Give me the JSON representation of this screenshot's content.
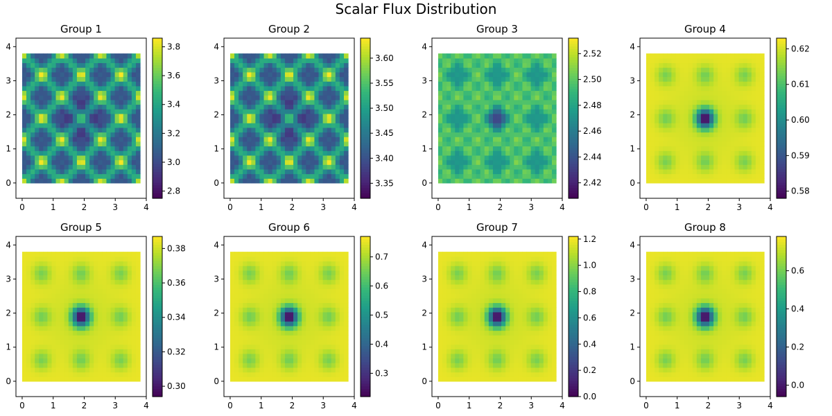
{
  "figure": {
    "title": "Scalar Flux Distribution"
  },
  "colormap": {
    "name": "viridis",
    "stops": [
      "#440154",
      "#482878",
      "#3e4a89",
      "#31688e",
      "#26828e",
      "#1f9e89",
      "#35b779",
      "#6ece58",
      "#b5de2b",
      "#fde725"
    ]
  },
  "chart_data": [
    {
      "type": "heatmap",
      "title": "Group 1",
      "xlim": [
        -0.2,
        4.0
      ],
      "ylim": [
        -0.45,
        4.25
      ],
      "xticks": [
        0,
        1,
        2,
        3,
        4
      ],
      "yticks": [
        0,
        1,
        2,
        3,
        4
      ],
      "extent": [
        0,
        3.8,
        0,
        3.8
      ],
      "grid": false,
      "colorbar": {
        "min": 2.75,
        "max": 3.86,
        "ticks": [
          2.8,
          3.0,
          3.2,
          3.4,
          3.6,
          3.8
        ],
        "labels": [
          "2.8",
          "3.0",
          "3.2",
          "3.4",
          "3.6",
          "3.8"
        ]
      },
      "pattern": "checker-fine"
    },
    {
      "type": "heatmap",
      "title": "Group 2",
      "xlim": [
        -0.2,
        4.0
      ],
      "ylim": [
        -0.45,
        4.25
      ],
      "xticks": [
        0,
        1,
        2,
        3,
        4
      ],
      "yticks": [
        0,
        1,
        2,
        3,
        4
      ],
      "extent": [
        0,
        3.8,
        0,
        3.8
      ],
      "grid": false,
      "colorbar": {
        "min": 3.32,
        "max": 3.64,
        "ticks": [
          3.35,
          3.4,
          3.45,
          3.5,
          3.55,
          3.6
        ],
        "labels": [
          "3.35",
          "3.40",
          "3.45",
          "3.50",
          "3.55",
          "3.60"
        ]
      },
      "pattern": "checker-fine"
    },
    {
      "type": "heatmap",
      "title": "Group 3",
      "xlim": [
        -0.2,
        4.0
      ],
      "ylim": [
        -0.45,
        4.25
      ],
      "xticks": [
        0,
        1,
        2,
        3,
        4
      ],
      "yticks": [
        0,
        1,
        2,
        3,
        4
      ],
      "extent": [
        0,
        3.8,
        0,
        3.8
      ],
      "grid": false,
      "colorbar": {
        "min": 2.408,
        "max": 2.532,
        "ticks": [
          2.42,
          2.44,
          2.46,
          2.48,
          2.5,
          2.52
        ],
        "labels": [
          "2.42",
          "2.44",
          "2.46",
          "2.48",
          "2.50",
          "2.52"
        ]
      },
      "pattern": "squares-mid"
    },
    {
      "type": "heatmap",
      "title": "Group 4",
      "xlim": [
        -0.2,
        4.0
      ],
      "ylim": [
        -0.45,
        4.25
      ],
      "xticks": [
        0,
        1,
        2,
        3,
        4
      ],
      "yticks": [
        0,
        1,
        2,
        3,
        4
      ],
      "extent": [
        0,
        3.8,
        0,
        3.8
      ],
      "grid": false,
      "colorbar": {
        "min": 0.578,
        "max": 0.623,
        "ticks": [
          0.58,
          0.59,
          0.6,
          0.61,
          0.62
        ],
        "labels": [
          "0.58",
          "0.59",
          "0.60",
          "0.61",
          "0.62"
        ]
      },
      "pattern": "center-dip"
    },
    {
      "type": "heatmap",
      "title": "Group 5",
      "xlim": [
        -0.2,
        4.0
      ],
      "ylim": [
        -0.45,
        4.25
      ],
      "xticks": [
        0,
        1,
        2,
        3,
        4
      ],
      "yticks": [
        0,
        1,
        2,
        3,
        4
      ],
      "extent": [
        0,
        3.8,
        0,
        3.8
      ],
      "grid": false,
      "colorbar": {
        "min": 0.294,
        "max": 0.387,
        "ticks": [
          0.3,
          0.32,
          0.34,
          0.36,
          0.38
        ],
        "labels": [
          "0.30",
          "0.32",
          "0.34",
          "0.36",
          "0.38"
        ]
      },
      "pattern": "center-dip"
    },
    {
      "type": "heatmap",
      "title": "Group 6",
      "xlim": [
        -0.2,
        4.0
      ],
      "ylim": [
        -0.45,
        4.25
      ],
      "xticks": [
        0,
        1,
        2,
        3,
        4
      ],
      "yticks": [
        0,
        1,
        2,
        3,
        4
      ],
      "extent": [
        0,
        3.8,
        0,
        3.8
      ],
      "grid": false,
      "colorbar": {
        "min": 0.22,
        "max": 0.77,
        "ticks": [
          0.3,
          0.4,
          0.5,
          0.6,
          0.7
        ],
        "labels": [
          "0.3",
          "0.4",
          "0.5",
          "0.6",
          "0.7"
        ]
      },
      "pattern": "center-dip"
    },
    {
      "type": "heatmap",
      "title": "Group 7",
      "xlim": [
        -0.2,
        4.0
      ],
      "ylim": [
        -0.45,
        4.25
      ],
      "xticks": [
        0,
        1,
        2,
        3,
        4
      ],
      "yticks": [
        0,
        1,
        2,
        3,
        4
      ],
      "extent": [
        0,
        3.8,
        0,
        3.8
      ],
      "grid": false,
      "colorbar": {
        "min": 0.0,
        "max": 1.22,
        "ticks": [
          0.0,
          0.2,
          0.4,
          0.6,
          0.8,
          1.0,
          1.2
        ],
        "labels": [
          "0.0",
          "0.2",
          "0.4",
          "0.6",
          "0.8",
          "1.0",
          "1.2"
        ]
      },
      "pattern": "center-dip"
    },
    {
      "type": "heatmap",
      "title": "Group 8",
      "xlim": [
        -0.2,
        4.0
      ],
      "ylim": [
        -0.45,
        4.25
      ],
      "xticks": [
        0,
        1,
        2,
        3,
        4
      ],
      "yticks": [
        0,
        1,
        2,
        3,
        4
      ],
      "extent": [
        0,
        3.8,
        0,
        3.8
      ],
      "grid": false,
      "colorbar": {
        "min": -0.06,
        "max": 0.78,
        "ticks": [
          0.0,
          0.2,
          0.4,
          0.6
        ],
        "labels": [
          "0.0",
          "0.2",
          "0.4",
          "0.6"
        ]
      },
      "pattern": "center-dip"
    }
  ]
}
